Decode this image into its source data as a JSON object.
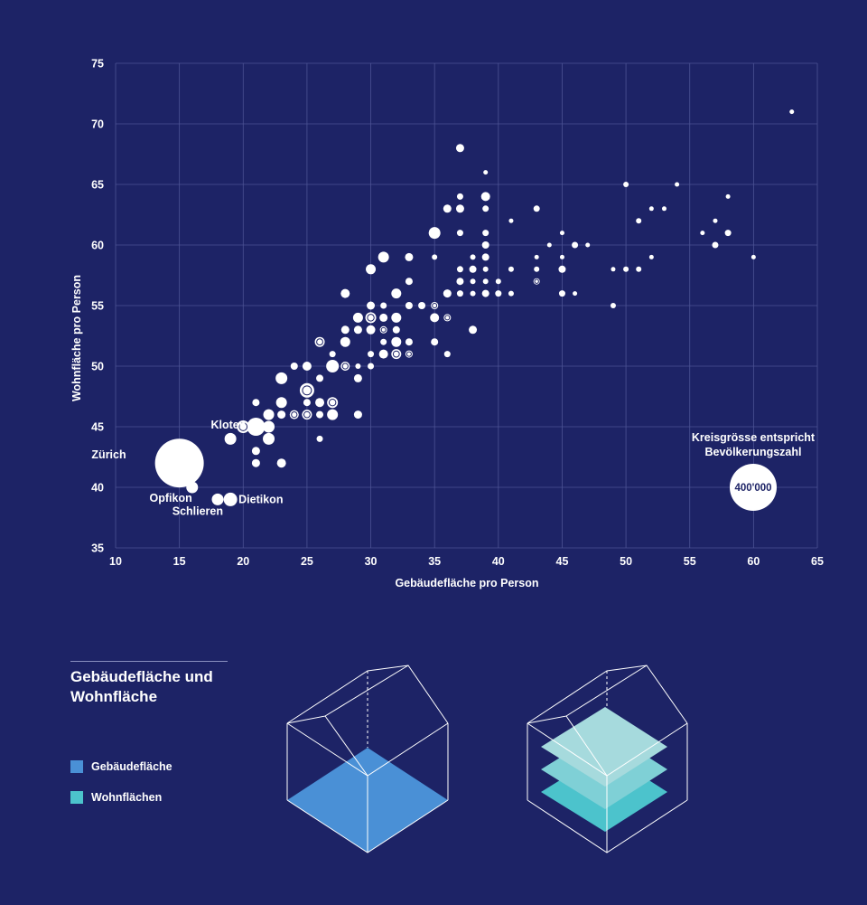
{
  "chart_data": {
    "type": "scatter",
    "title": "",
    "xlabel": "Gebäudefläche pro Person",
    "ylabel": "Wohnfläche pro Person",
    "xlim": [
      10,
      65
    ],
    "ylim": [
      35,
      75
    ],
    "xticks": [
      "10",
      "15",
      "20",
      "25",
      "30",
      "35",
      "40",
      "45",
      "50",
      "55",
      "60",
      "65"
    ],
    "yticks": [
      "35",
      "40",
      "45",
      "50",
      "55",
      "60",
      "65",
      "70",
      "75"
    ],
    "grid": true,
    "size_note": [
      "Kreisgrösse entspricht",
      "Bevölkerungszahl"
    ],
    "size_reference": {
      "label": "400'000",
      "population": 400000
    },
    "labels": [
      {
        "text": "Zürich",
        "x": 15,
        "y": 42
      },
      {
        "text": "Kloten",
        "x": 21,
        "y": 45
      },
      {
        "text": "Opfikon",
        "x": 16,
        "y": 40
      },
      {
        "text": "Schlieren",
        "x": 18,
        "y": 39
      },
      {
        "text": "Dietikon",
        "x": 19,
        "y": 39
      }
    ],
    "points": [
      {
        "x": 15,
        "y": 42,
        "r": 27,
        "name": "Zürich"
      },
      {
        "x": 16,
        "y": 40,
        "r": 6.5,
        "name": "Opfikon"
      },
      {
        "x": 18,
        "y": 39,
        "r": 6.5,
        "name": "Schlieren"
      },
      {
        "x": 19,
        "y": 39,
        "r": 7.5,
        "name": "Dietikon"
      },
      {
        "x": 21,
        "y": 45,
        "r": 10,
        "name": "Kloten"
      },
      {
        "x": 20,
        "y": 45,
        "r": 7,
        "ring": true
      },
      {
        "x": 22,
        "y": 45,
        "r": 6.5
      },
      {
        "x": 19,
        "y": 44,
        "r": 6.5
      },
      {
        "x": 22,
        "y": 44,
        "r": 6.5
      },
      {
        "x": 21,
        "y": 43,
        "r": 4.5
      },
      {
        "x": 21,
        "y": 42,
        "r": 4.5
      },
      {
        "x": 23,
        "y": 42,
        "r": 5
      },
      {
        "x": 22,
        "y": 46,
        "r": 6
      },
      {
        "x": 21,
        "y": 47,
        "r": 4
      },
      {
        "x": 23,
        "y": 46,
        "r": 4.5
      },
      {
        "x": 23,
        "y": 47,
        "r": 6
      },
      {
        "x": 23,
        "y": 49,
        "r": 6.5
      },
      {
        "x": 24,
        "y": 46,
        "r": 5,
        "ring": true
      },
      {
        "x": 24,
        "y": 50,
        "r": 4
      },
      {
        "x": 25,
        "y": 48,
        "r": 8,
        "ring": true
      },
      {
        "x": 25,
        "y": 46,
        "r": 5.5,
        "ring": true
      },
      {
        "x": 25,
        "y": 47,
        "r": 4
      },
      {
        "x": 25,
        "y": 50,
        "r": 5
      },
      {
        "x": 26,
        "y": 46,
        "r": 4
      },
      {
        "x": 26,
        "y": 47,
        "r": 5
      },
      {
        "x": 26,
        "y": 49,
        "r": 4
      },
      {
        "x": 26,
        "y": 44,
        "r": 3.5
      },
      {
        "x": 26,
        "y": 52,
        "r": 5.5,
        "ring": true
      },
      {
        "x": 27,
        "y": 46,
        "r": 6
      },
      {
        "x": 27,
        "y": 47,
        "r": 6,
        "ring": true
      },
      {
        "x": 27,
        "y": 50,
        "r": 7
      },
      {
        "x": 27,
        "y": 51,
        "r": 3.5
      },
      {
        "x": 28,
        "y": 50,
        "r": 5,
        "ring": true
      },
      {
        "x": 28,
        "y": 52,
        "r": 5.5
      },
      {
        "x": 28,
        "y": 53,
        "r": 4.5
      },
      {
        "x": 28,
        "y": 56,
        "r": 5
      },
      {
        "x": 29,
        "y": 46,
        "r": 4.5
      },
      {
        "x": 29,
        "y": 49,
        "r": 4.5
      },
      {
        "x": 29,
        "y": 50,
        "r": 3
      },
      {
        "x": 29,
        "y": 53,
        "r": 4.5
      },
      {
        "x": 29,
        "y": 54,
        "r": 5.5
      },
      {
        "x": 30,
        "y": 50,
        "r": 3.5
      },
      {
        "x": 30,
        "y": 51,
        "r": 3.5
      },
      {
        "x": 30,
        "y": 53,
        "r": 5
      },
      {
        "x": 30,
        "y": 54,
        "r": 6,
        "ring": true
      },
      {
        "x": 30,
        "y": 55,
        "r": 4.5
      },
      {
        "x": 30,
        "y": 58,
        "r": 5.5
      },
      {
        "x": 31,
        "y": 51,
        "r": 5
      },
      {
        "x": 31,
        "y": 52,
        "r": 3.5
      },
      {
        "x": 31,
        "y": 53,
        "r": 4,
        "ring": true
      },
      {
        "x": 31,
        "y": 54,
        "r": 4.5
      },
      {
        "x": 31,
        "y": 55,
        "r": 3.5
      },
      {
        "x": 31,
        "y": 59,
        "r": 6
      },
      {
        "x": 32,
        "y": 51,
        "r": 5.5,
        "ring": true
      },
      {
        "x": 32,
        "y": 52,
        "r": 5.5
      },
      {
        "x": 32,
        "y": 53,
        "r": 4
      },
      {
        "x": 32,
        "y": 54,
        "r": 5.5
      },
      {
        "x": 32,
        "y": 56,
        "r": 5.5
      },
      {
        "x": 33,
        "y": 51,
        "r": 4,
        "ring": true
      },
      {
        "x": 33,
        "y": 52,
        "r": 4
      },
      {
        "x": 33,
        "y": 55,
        "r": 4
      },
      {
        "x": 33,
        "y": 57,
        "r": 4
      },
      {
        "x": 33,
        "y": 59,
        "r": 4.5
      },
      {
        "x": 34,
        "y": 55,
        "r": 4
      },
      {
        "x": 35,
        "y": 52,
        "r": 4
      },
      {
        "x": 35,
        "y": 54,
        "r": 5
      },
      {
        "x": 35,
        "y": 55,
        "r": 4,
        "ring": true
      },
      {
        "x": 35,
        "y": 59,
        "r": 3
      },
      {
        "x": 35,
        "y": 61,
        "r": 6.5
      },
      {
        "x": 36,
        "y": 51,
        "r": 3.5
      },
      {
        "x": 36,
        "y": 54,
        "r": 4,
        "ring": true
      },
      {
        "x": 36,
        "y": 56,
        "r": 4.5
      },
      {
        "x": 36,
        "y": 63,
        "r": 4.5
      },
      {
        "x": 37,
        "y": 56,
        "r": 3.5
      },
      {
        "x": 37,
        "y": 57,
        "r": 4
      },
      {
        "x": 37,
        "y": 58,
        "r": 3.5
      },
      {
        "x": 37,
        "y": 61,
        "r": 3.5
      },
      {
        "x": 37,
        "y": 63,
        "r": 4.5
      },
      {
        "x": 37,
        "y": 64,
        "r": 3.5
      },
      {
        "x": 37,
        "y": 68,
        "r": 4.5
      },
      {
        "x": 38,
        "y": 53,
        "r": 4.5
      },
      {
        "x": 38,
        "y": 56,
        "r": 3
      },
      {
        "x": 38,
        "y": 57,
        "r": 3
      },
      {
        "x": 38,
        "y": 58,
        "r": 4
      },
      {
        "x": 38,
        "y": 59,
        "r": 3
      },
      {
        "x": 39,
        "y": 56,
        "r": 4
      },
      {
        "x": 39,
        "y": 57,
        "r": 3
      },
      {
        "x": 39,
        "y": 58,
        "r": 3
      },
      {
        "x": 39,
        "y": 59,
        "r": 4
      },
      {
        "x": 39,
        "y": 60,
        "r": 4
      },
      {
        "x": 39,
        "y": 61,
        "r": 3.5
      },
      {
        "x": 39,
        "y": 63,
        "r": 3.5
      },
      {
        "x": 39,
        "y": 64,
        "r": 5
      },
      {
        "x": 39,
        "y": 66,
        "r": 2.5
      },
      {
        "x": 40,
        "y": 56,
        "r": 3.5
      },
      {
        "x": 40,
        "y": 57,
        "r": 3
      },
      {
        "x": 41,
        "y": 56,
        "r": 3
      },
      {
        "x": 41,
        "y": 58,
        "r": 3
      },
      {
        "x": 41,
        "y": 62,
        "r": 2.5
      },
      {
        "x": 43,
        "y": 57,
        "r": 3.5,
        "ring": true
      },
      {
        "x": 43,
        "y": 58,
        "r": 3
      },
      {
        "x": 43,
        "y": 59,
        "r": 2.5
      },
      {
        "x": 43,
        "y": 63,
        "r": 3.5
      },
      {
        "x": 44,
        "y": 60,
        "r": 2.5
      },
      {
        "x": 45,
        "y": 56,
        "r": 3.5
      },
      {
        "x": 45,
        "y": 58,
        "r": 4
      },
      {
        "x": 45,
        "y": 59,
        "r": 2.5
      },
      {
        "x": 45,
        "y": 61,
        "r": 2.5
      },
      {
        "x": 46,
        "y": 56,
        "r": 2.5
      },
      {
        "x": 46,
        "y": 60,
        "r": 3.5
      },
      {
        "x": 47,
        "y": 60,
        "r": 2.5
      },
      {
        "x": 49,
        "y": 55,
        "r": 3
      },
      {
        "x": 49,
        "y": 58,
        "r": 2.5
      },
      {
        "x": 50,
        "y": 58,
        "r": 3
      },
      {
        "x": 50,
        "y": 65,
        "r": 3
      },
      {
        "x": 51,
        "y": 58,
        "r": 3
      },
      {
        "x": 51,
        "y": 62,
        "r": 3
      },
      {
        "x": 52,
        "y": 59,
        "r": 2.5
      },
      {
        "x": 52,
        "y": 63,
        "r": 2.5
      },
      {
        "x": 53,
        "y": 63,
        "r": 2.5
      },
      {
        "x": 54,
        "y": 65,
        "r": 2.5
      },
      {
        "x": 56,
        "y": 61,
        "r": 2.5
      },
      {
        "x": 57,
        "y": 60,
        "r": 3.5
      },
      {
        "x": 57,
        "y": 62,
        "r": 2.5
      },
      {
        "x": 58,
        "y": 61,
        "r": 3.5
      },
      {
        "x": 58,
        "y": 64,
        "r": 2.5
      },
      {
        "x": 60,
        "y": 59,
        "r": 2.5
      },
      {
        "x": 63,
        "y": 71,
        "r": 2.5
      }
    ]
  },
  "legend": {
    "title": "Gebäudefläche und Wohnfläche",
    "items": [
      {
        "label": "Gebäudefläche",
        "color": "#4a90d6"
      },
      {
        "label": "Wohnflächen",
        "color": "#4cc3cc"
      }
    ]
  },
  "colors": {
    "background": "#1d2366",
    "points": "#ffffff",
    "layer_light": "#a6dadd",
    "layer_mid": "#7fd0d6",
    "layer_dark": "#4cc3cc"
  }
}
